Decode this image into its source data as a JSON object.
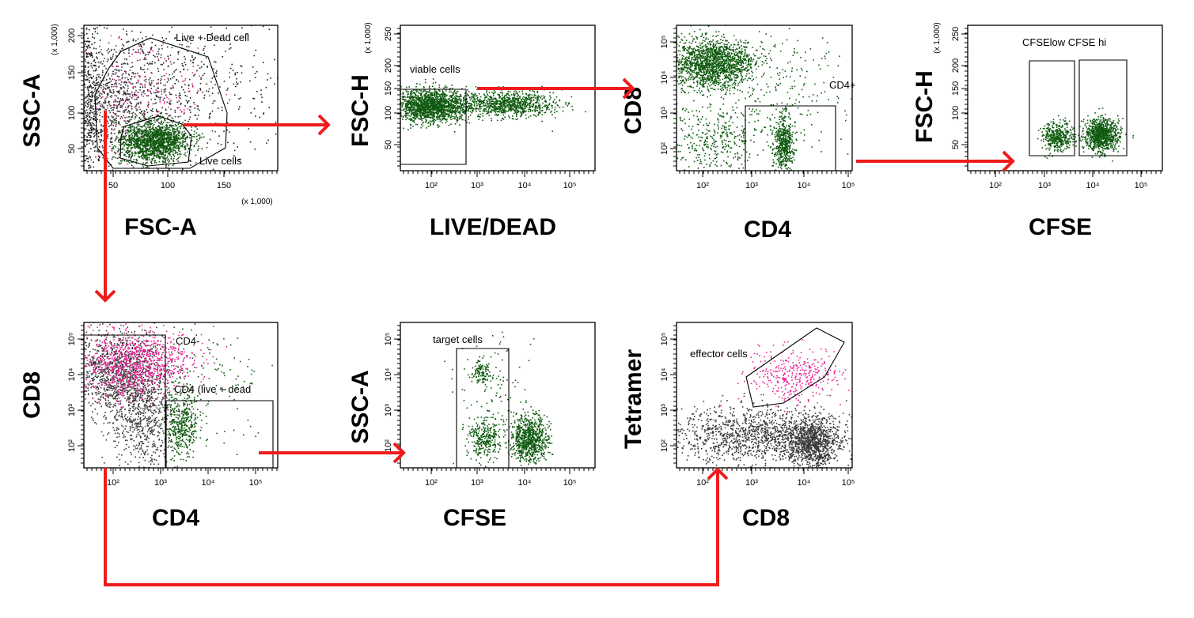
{
  "colors": {
    "arrow": "#ee1c1c",
    "gated_population": "#0f5a0f",
    "ungated_population": "#3a3a3a",
    "tetramer_positive": "#ee2299",
    "frame": "#000000"
  },
  "plots": [
    {
      "id": "p1",
      "x_label": "FSC-A",
      "y_label": "SSC-A",
      "x_scale": "linear",
      "y_scale": "linear",
      "x_ticks": [
        "50",
        "100",
        "150"
      ],
      "y_ticks": [
        "50",
        "100",
        "150",
        "200"
      ],
      "x_multiplier": "(x 1,000)",
      "y_multiplier": "(x 1,000)",
      "gates": [
        "Live + Dead cell",
        "Live cells"
      ]
    },
    {
      "id": "p2",
      "x_label": "LIVE/DEAD",
      "y_label": "FSC-H",
      "x_scale": "log",
      "y_scale": "linear",
      "x_ticks": [
        "10²",
        "10³",
        "10⁴",
        "10⁵"
      ],
      "y_ticks": [
        "50",
        "100",
        "150",
        "200",
        "250"
      ],
      "y_multiplier": "(x 1,000)",
      "gates": [
        "viable cells"
      ]
    },
    {
      "id": "p3",
      "x_label": "CD4",
      "y_label": "CD8",
      "x_scale": "log",
      "y_scale": "log",
      "x_ticks": [
        "10²",
        "10³",
        "10⁴",
        "10⁵"
      ],
      "y_ticks": [
        "10²",
        "10³",
        "10⁴",
        "10⁵"
      ],
      "gates": [
        "CD4+"
      ]
    },
    {
      "id": "p4",
      "x_label": "CFSE",
      "y_label": "FSC-H",
      "x_scale": "log",
      "y_scale": "linear",
      "x_ticks": [
        "10²",
        "10³",
        "10⁴",
        "10⁵"
      ],
      "y_ticks": [
        "50",
        "100",
        "150",
        "200",
        "250"
      ],
      "y_multiplier": "(x 1,000)",
      "gates": [
        "CFSElow CFSE hi"
      ]
    },
    {
      "id": "p5",
      "x_label": "CD4",
      "y_label": "CD8",
      "x_scale": "log",
      "y_scale": "log",
      "x_ticks": [
        "10²",
        "10³",
        "10⁴",
        "10⁵"
      ],
      "y_ticks": [
        "10²",
        "10³",
        "10⁴",
        "10⁵"
      ],
      "gates": [
        "CD4-",
        "CD4 (live + dead"
      ]
    },
    {
      "id": "p6",
      "x_label": "CFSE",
      "y_label": "SSC-A",
      "x_scale": "log",
      "y_scale": "log",
      "x_ticks": [
        "10²",
        "10³",
        "10⁴",
        "10⁵"
      ],
      "y_ticks": [
        "10²",
        "10³",
        "10⁴",
        "10⁵"
      ],
      "gates": [
        "target cells"
      ]
    },
    {
      "id": "p7",
      "x_label": "CD8",
      "y_label": "Tetramer",
      "x_scale": "log",
      "y_scale": "log",
      "x_ticks": [
        "10²",
        "10³",
        "10⁴",
        "10⁵"
      ],
      "y_ticks": [
        "10²",
        "10³",
        "10⁴",
        "10⁵"
      ],
      "gates": [
        "effector cells"
      ]
    }
  ]
}
